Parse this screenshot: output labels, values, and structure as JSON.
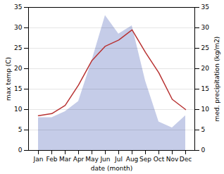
{
  "chart_data": {
    "type": "line",
    "categories": [
      "Jan",
      "Feb",
      "Mar",
      "Apr",
      "May",
      "Jun",
      "Jul",
      "Aug",
      "Sep",
      "Oct",
      "Nov",
      "Dec"
    ],
    "xlabel": "date (month)",
    "ylabel": "max temp (C)",
    "y2label": "med. precipitation (kg/m2)",
    "series": [
      {
        "type": "area",
        "axis": "y2",
        "color": "#c5cce8",
        "values": [
          8.0,
          8.0,
          9.5,
          12.0,
          22.0,
          33.0,
          28.5,
          30.5,
          17.0,
          7.0,
          5.5,
          8.5
        ]
      },
      {
        "type": "line",
        "color": "#b83232",
        "values": [
          8.5,
          9.0,
          11.0,
          16.0,
          22.0,
          25.5,
          27.0,
          29.5,
          24.0,
          19.0,
          12.5,
          10.0
        ]
      }
    ],
    "ylim": [
      0,
      35
    ],
    "yticks": [
      0,
      5,
      10,
      15,
      20,
      25,
      30,
      35
    ],
    "y2lim": [
      0,
      35
    ],
    "y2ticks": [
      0,
      5,
      10,
      15,
      20,
      25,
      30,
      35
    ],
    "grid": true
  }
}
